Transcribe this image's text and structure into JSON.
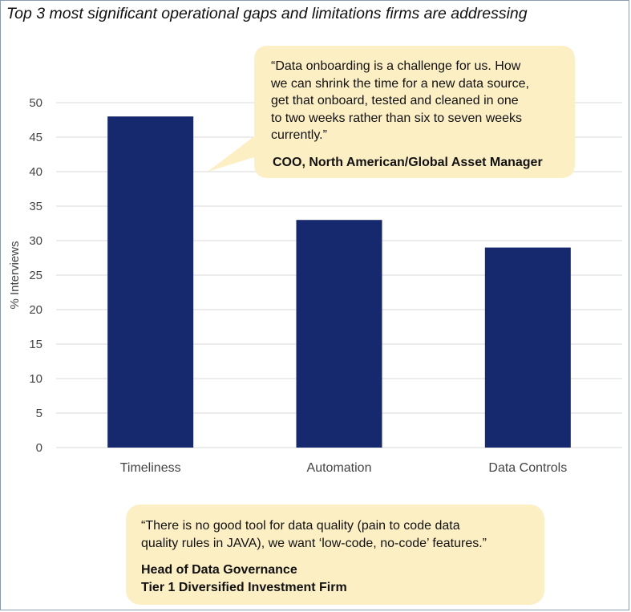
{
  "chart_data": {
    "type": "bar",
    "title": "Top 3 most significant operational gaps and limitations firms are addressing",
    "xlabel": "",
    "ylabel": "% Interviews",
    "categories": [
      "Timeliness",
      "Automation",
      "Data Controls"
    ],
    "values": [
      48,
      33,
      29
    ],
    "ylim": [
      0,
      50
    ],
    "yticks": [
      0,
      5,
      10,
      15,
      20,
      25,
      30,
      35,
      40,
      45,
      50
    ],
    "grid": true,
    "colors": {
      "bar": "#17296e",
      "grid": "#d9d9d9",
      "callout_fill": "#fcefc4"
    }
  },
  "callouts": {
    "top": {
      "quote_lines": [
        "“Data onboarding is a challenge for us. How",
        "we can shrink the time for a new data source,",
        "get that onboard, tested and cleaned in one",
        "to two weeks rather than six to seven weeks",
        "currently.”"
      ],
      "attribution": "COO, North American/Global Asset Manager"
    },
    "bottom": {
      "quote_lines": [
        "“There is no good tool for data quality (pain to code data",
        "quality rules in JAVA), we want ‘low-code, no-code’ features.”"
      ],
      "attribution_lines": [
        "Head of Data Governance",
        "Tier 1 Diversified Investment Firm"
      ]
    }
  }
}
